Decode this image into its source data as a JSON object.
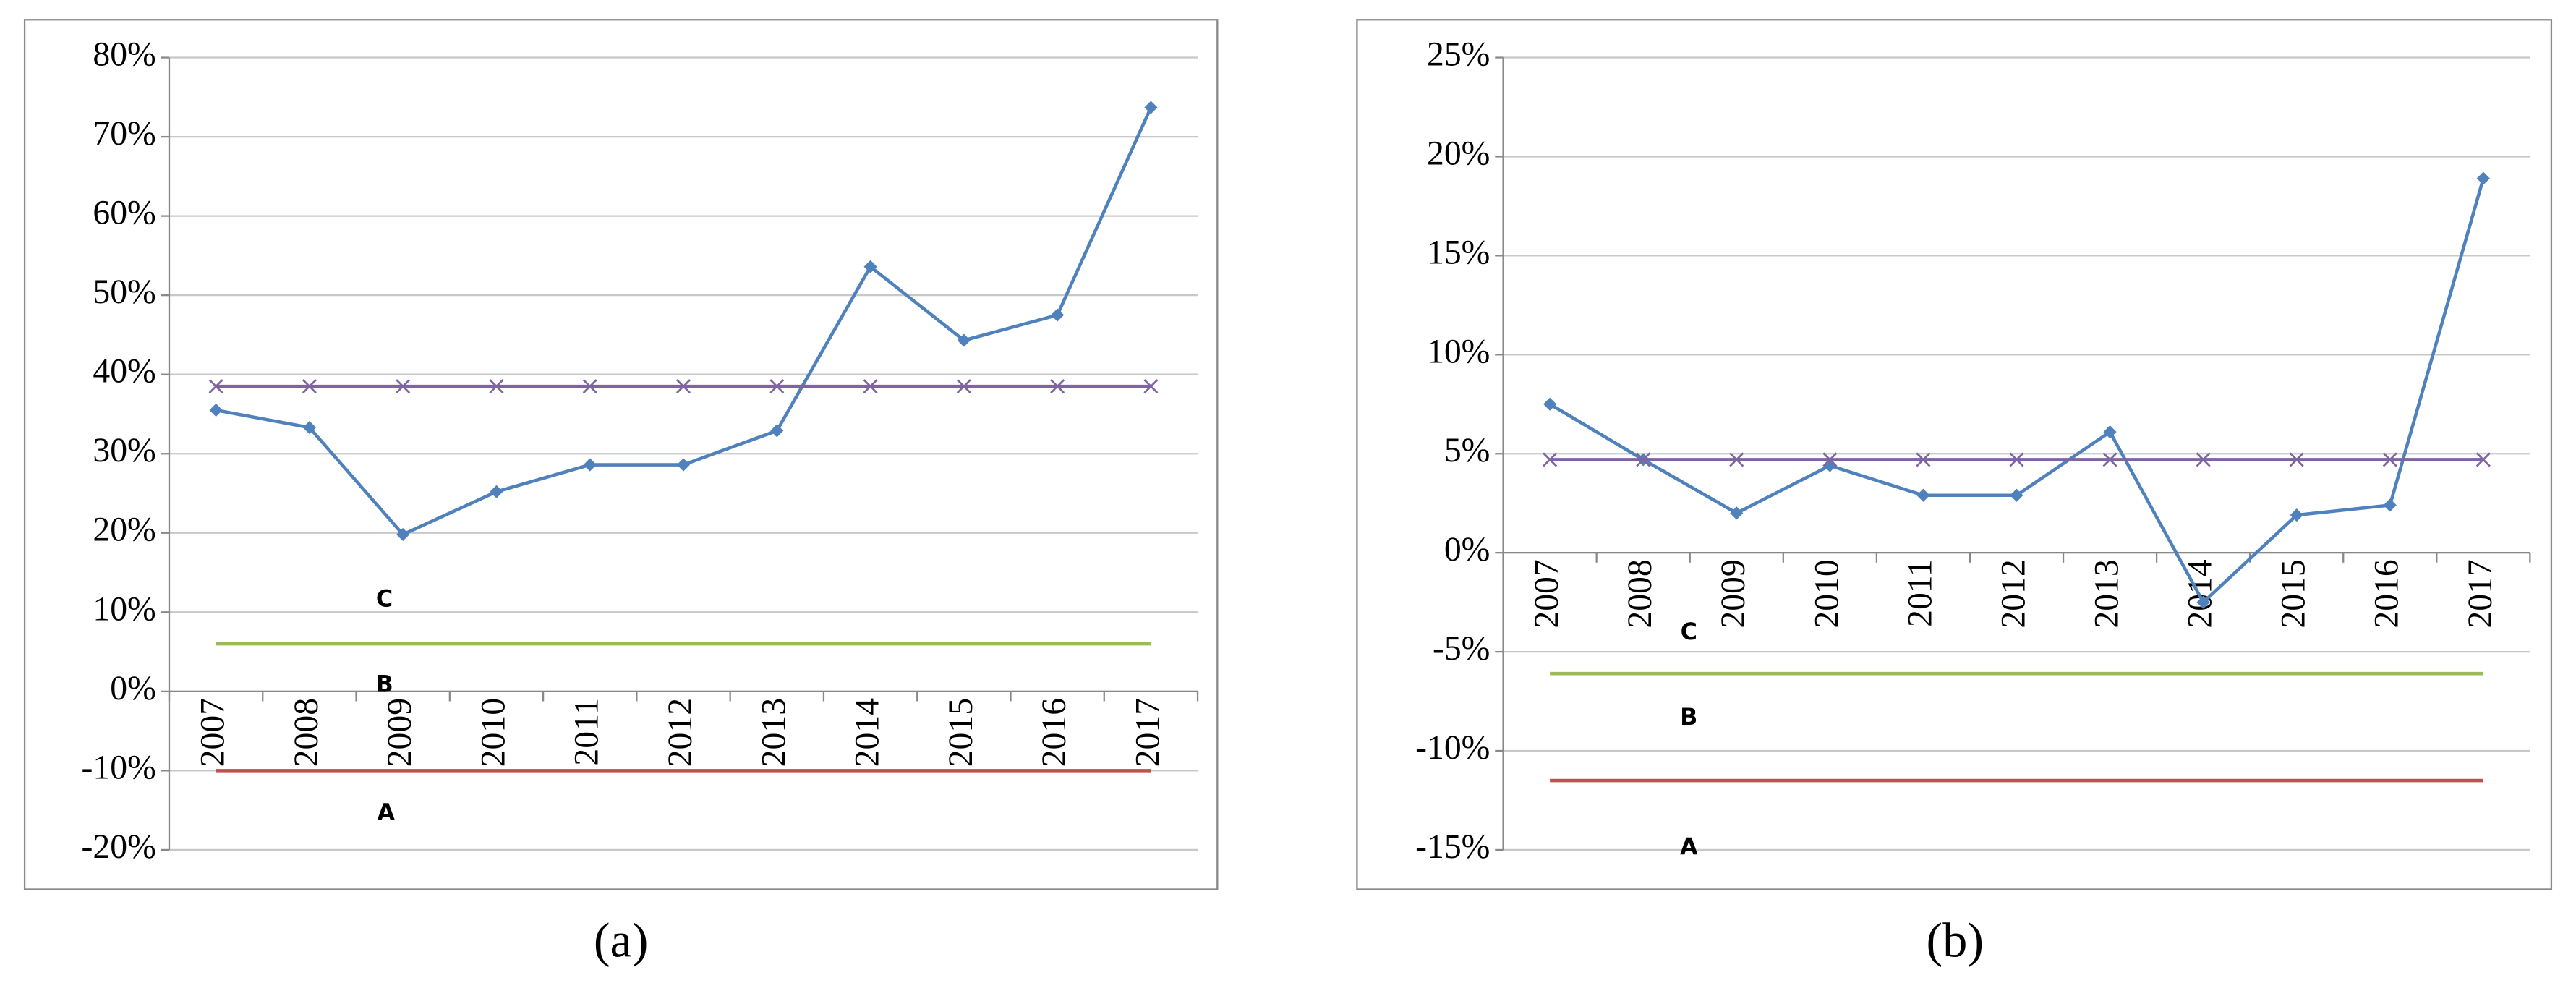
{
  "chart_data": [
    {
      "type": "line",
      "caption": "(a)",
      "categories": [
        "2007",
        "2008",
        "2009",
        "2010",
        "2011",
        "2012",
        "2013",
        "2014",
        "2015",
        "2016",
        "2017"
      ],
      "series": [
        {
          "color": "#4f81bd",
          "marker": "diamond",
          "values": [
            35.5,
            33.3,
            19.8,
            25.2,
            28.6,
            28.6,
            32.9,
            53.6,
            44.3,
            47.5,
            73.7
          ]
        },
        {
          "color": "#8064a2",
          "marker": "x",
          "values": [
            38.5,
            38.5,
            38.5,
            38.5,
            38.5,
            38.5,
            38.5,
            38.5,
            38.5,
            38.5,
            38.5
          ]
        },
        {
          "color": "#9bbb59",
          "marker": "none",
          "values": [
            6,
            6,
            6,
            6,
            6,
            6,
            6,
            6,
            6,
            6,
            6
          ]
        },
        {
          "color": "#c0504d",
          "marker": "none",
          "values": [
            -10,
            -10,
            -10,
            -10,
            -10,
            -10,
            -10,
            -10,
            -10,
            -10,
            -10
          ]
        }
      ],
      "annotations": [
        "C",
        "B",
        "A"
      ],
      "ylim": [
        -20,
        80
      ],
      "yticks": [
        {
          "value": -20,
          "label": "-20%"
        },
        {
          "value": -10,
          "label": "-10%"
        },
        {
          "value": 0,
          "label": "0%"
        },
        {
          "value": 10,
          "label": "10%"
        },
        {
          "value": 20,
          "label": "20%"
        },
        {
          "value": 30,
          "label": "30%"
        },
        {
          "value": 40,
          "label": "40%"
        },
        {
          "value": 50,
          "label": "50%"
        },
        {
          "value": 60,
          "label": "60%"
        },
        {
          "value": 70,
          "label": "70%"
        },
        {
          "value": 80,
          "label": "80%"
        }
      ],
      "grid": true
    },
    {
      "type": "line",
      "caption": "(b)",
      "categories": [
        "2007",
        "2008",
        "2009",
        "2010",
        "2011",
        "2012",
        "2013",
        "2014",
        "2015",
        "2016",
        "2017"
      ],
      "series": [
        {
          "color": "#4f81bd",
          "marker": "diamond",
          "values": [
            7.5,
            4.7,
            2.0,
            4.4,
            2.9,
            2.9,
            6.1,
            -2.5,
            1.9,
            2.4,
            18.9
          ]
        },
        {
          "color": "#8064a2",
          "marker": "x",
          "values": [
            4.7,
            4.7,
            4.7,
            4.7,
            4.7,
            4.7,
            4.7,
            4.7,
            4.7,
            4.7,
            4.7
          ]
        },
        {
          "color": "#9bbb59",
          "marker": "none",
          "values": [
            -6.1,
            -6.1,
            -6.1,
            -6.1,
            -6.1,
            -6.1,
            -6.1,
            -6.1,
            -6.1,
            -6.1,
            -6.1
          ]
        },
        {
          "color": "#c0504d",
          "marker": "none",
          "values": [
            -11.5,
            -11.5,
            -11.5,
            -11.5,
            -11.5,
            -11.5,
            -11.5,
            -11.5,
            -11.5,
            -11.5,
            -11.5
          ]
        }
      ],
      "annotations": [
        "C",
        "B",
        "A"
      ],
      "ylim": [
        -15,
        25
      ],
      "yticks": [
        {
          "value": -15,
          "label": "-15%"
        },
        {
          "value": -10,
          "label": "-10%"
        },
        {
          "value": -5,
          "label": "-5%"
        },
        {
          "value": 0,
          "label": "0%"
        },
        {
          "value": 5,
          "label": "5%"
        },
        {
          "value": 10,
          "label": "10%"
        },
        {
          "value": 15,
          "label": "15%"
        },
        {
          "value": 20,
          "label": "20%"
        },
        {
          "value": 25,
          "label": "25%"
        }
      ],
      "grid": true
    }
  ]
}
